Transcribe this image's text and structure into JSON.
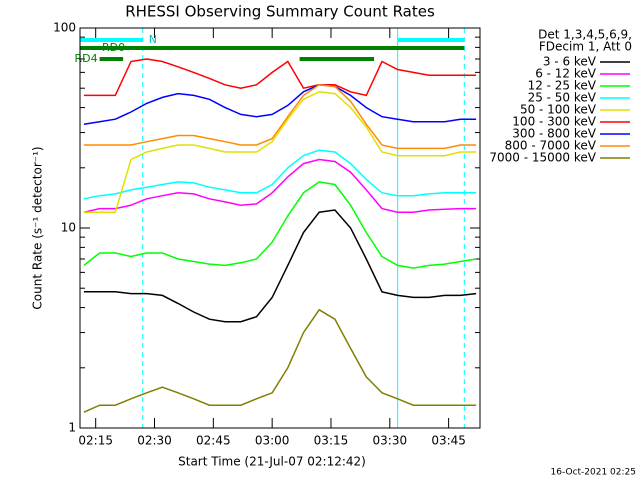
{
  "chart_data": {
    "type": "line",
    "title": "RHESSI Observing Summary Count Rates",
    "xlabel": "Start Time (21-Jul-07 02:12:42)",
    "ylabel": "Count Rate (s⁻¹ detector⁻¹)",
    "footer": "16-Oct-2021 02:25",
    "legend_header": [
      "Det 1,3,4,5,6,9,",
      "FDecim 1, Att 0"
    ],
    "log_y": true,
    "x": [
      "02:12",
      "02:16",
      "02:20",
      "02:24",
      "02:28",
      "02:32",
      "02:36",
      "02:40",
      "02:44",
      "02:48",
      "02:52",
      "02:56",
      "03:00",
      "03:04",
      "03:08",
      "03:12",
      "03:16",
      "03:20",
      "03:24",
      "03:28",
      "03:32",
      "03:36",
      "03:40",
      "03:44",
      "03:48",
      "03:52"
    ],
    "xlim": [
      "02:11",
      "03:53"
    ],
    "xticks": [
      "02:15",
      "02:30",
      "02:45",
      "03:00",
      "03:15",
      "03:30",
      "03:45"
    ],
    "ylim": [
      1,
      100
    ],
    "yticks": [
      1,
      10,
      100
    ],
    "minor_yticks": [
      2,
      3,
      4,
      5,
      6,
      7,
      8,
      9,
      20,
      30,
      40,
      50,
      60,
      70,
      80,
      90
    ],
    "series": [
      {
        "name": "3 - 6 keV",
        "color": "#000000",
        "values": [
          4.8,
          4.8,
          4.8,
          4.7,
          4.7,
          4.6,
          4.2,
          3.8,
          3.5,
          3.4,
          3.4,
          3.6,
          4.5,
          6.5,
          9.5,
          12,
          12.3,
          10,
          7,
          4.8,
          4.6,
          4.5,
          4.5,
          4.6,
          4.6,
          4.7
        ]
      },
      {
        "name": "6 - 12 keV",
        "color": "#ff00ff",
        "values": [
          12,
          12.5,
          12.5,
          13,
          14,
          14.5,
          15,
          14.8,
          14,
          13.5,
          13,
          13.2,
          15,
          18,
          21,
          22,
          21.5,
          19,
          15.5,
          12.5,
          12,
          12,
          12.3,
          12.4,
          12.5,
          12.5
        ]
      },
      {
        "name": "12 - 25 keV",
        "color": "#00ff00",
        "values": [
          6.5,
          7.5,
          7.5,
          7.2,
          7.5,
          7.5,
          7,
          6.8,
          6.6,
          6.5,
          6.7,
          7,
          8.5,
          11.5,
          15,
          17,
          16.5,
          13,
          9.5,
          7.2,
          6.5,
          6.3,
          6.5,
          6.6,
          6.8,
          7
        ]
      },
      {
        "name": "25 - 50 keV",
        "color": "#00ffff",
        "values": [
          14,
          14.5,
          14.8,
          15.5,
          16,
          16.5,
          17,
          16.8,
          16,
          15.5,
          15,
          15,
          16.5,
          20,
          23,
          24.5,
          24,
          21,
          17.5,
          15,
          14.5,
          14.5,
          14.8,
          15,
          15,
          15
        ]
      },
      {
        "name": "50 - 100 keV",
        "color": "#e0e000",
        "values": [
          12,
          12,
          12,
          22,
          24,
          25,
          26,
          26,
          25,
          24,
          24,
          24,
          27,
          35,
          44,
          48,
          47,
          40,
          32,
          24,
          23,
          23,
          23,
          23,
          24,
          24
        ]
      },
      {
        "name": "100 - 300 keV",
        "color": "#ff0000",
        "values": [
          46,
          46,
          46,
          68,
          70,
          68,
          64,
          60,
          56,
          52,
          50,
          52,
          60,
          68,
          50,
          52,
          52,
          48,
          46,
          68,
          62,
          60,
          58,
          58,
          58,
          58
        ]
      },
      {
        "name": "300 - 800 keV",
        "color": "#0000ff",
        "values": [
          33,
          34,
          35,
          38,
          42,
          45,
          47,
          46,
          44,
          40,
          37,
          36,
          37,
          41,
          48,
          52,
          51,
          46,
          40,
          36,
          35,
          34,
          34,
          34,
          35,
          35
        ]
      },
      {
        "name": "800 - 7000 keV",
        "color": "#ff8c00",
        "values": [
          26,
          26,
          26,
          26,
          27,
          28,
          29,
          29,
          28,
          27,
          26,
          26,
          28,
          36,
          46,
          52,
          51,
          43,
          33,
          26,
          25,
          25,
          25,
          25,
          26,
          26
        ]
      },
      {
        "name": "7000 - 15000 keV",
        "color": "#808000",
        "values": [
          1.2,
          1.3,
          1.3,
          1.4,
          1.5,
          1.6,
          1.5,
          1.4,
          1.3,
          1.3,
          1.3,
          1.4,
          1.5,
          2,
          3,
          3.9,
          3.5,
          2.5,
          1.8,
          1.5,
          1.4,
          1.3,
          1.3,
          1.3,
          1.3,
          1.3
        ]
      }
    ],
    "flags": [
      {
        "label": "N",
        "color": "#00ffff",
        "intervals": [
          [
            "02:11",
            "02:27"
          ],
          [
            "03:32",
            "03:49"
          ]
        ]
      },
      {
        "label": "RD0",
        "color": "#008000",
        "intervals": [
          [
            "02:11",
            "03:49"
          ]
        ]
      },
      {
        "label": "RD4",
        "color": "#008000",
        "intervals": [
          [
            "02:16",
            "02:22"
          ],
          [
            "03:07",
            "03:26"
          ]
        ]
      }
    ]
  }
}
